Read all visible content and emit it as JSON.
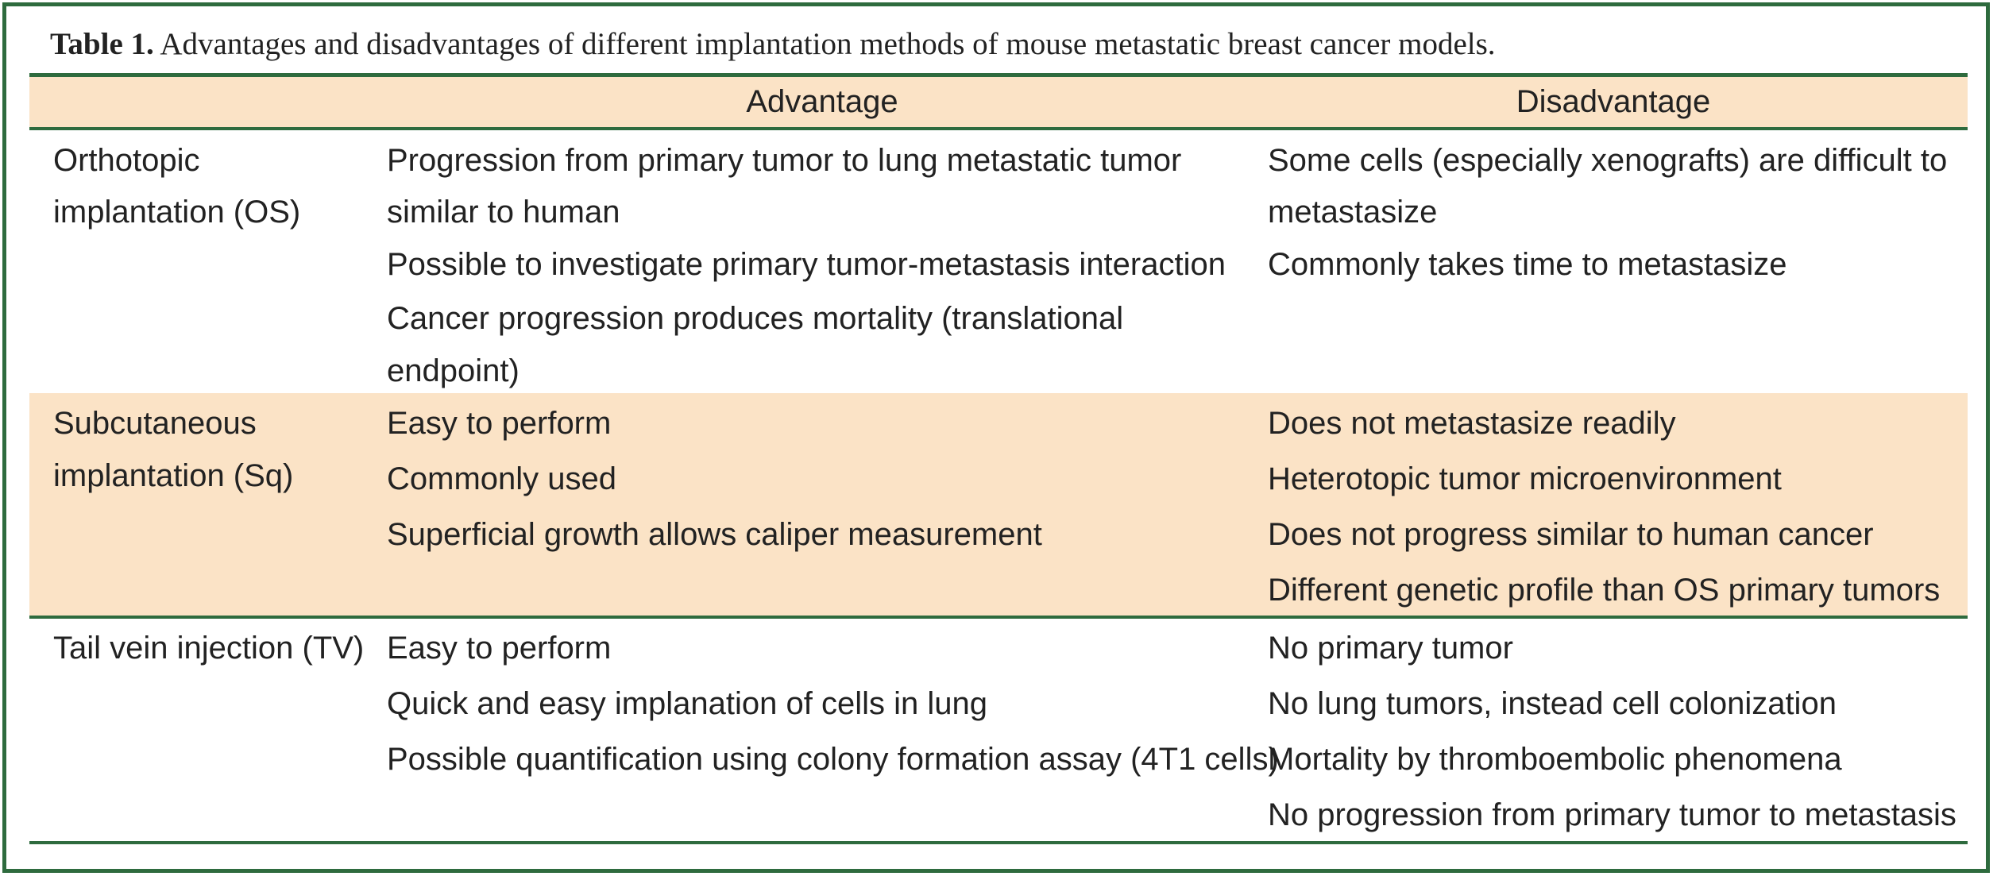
{
  "caption": {
    "label": "Table 1.",
    "text": " Advantages and disadvantages of different implantation methods of mouse metastatic breast cancer models."
  },
  "headers": {
    "method": "",
    "advantage": "Advantage",
    "disadvantage": "Disadvantage"
  },
  "rows": [
    {
      "method": [
        "Orthotopic",
        "implantation (OS)"
      ],
      "advantage": [
        "Progression from primary tumor to lung metastatic tumor",
        "similar to human",
        "Possible to investigate primary tumor-metastasis interaction",
        "Cancer progression produces mortality (translational",
        "endpoint)"
      ],
      "disadvantage": [
        "Some cells (especially xenografts) are difficult to",
        "metastasize",
        "Commonly takes time to metastasize"
      ]
    },
    {
      "method": [
        "Subcutaneous",
        "implantation (Sq)"
      ],
      "advantage": [
        "Easy to perform",
        "Commonly used",
        "Superficial growth allows caliper measurement"
      ],
      "disadvantage": [
        "Does not metastasize readily",
        "Heterotopic tumor microenvironment",
        "Does not progress similar to human cancer",
        "Different genetic profile than OS primary tumors"
      ]
    },
    {
      "method": [
        "Tail vein injection (TV)"
      ],
      "advantage": [
        "Easy to perform",
        "Quick and easy implanation of cells in lung",
        "Possible quantification using colony formation assay (4T1 cells)"
      ],
      "disadvantage": [
        "No primary tumor",
        "No lung tumors, instead cell colonization",
        "Mortality by thromboembolic phenomena",
        "No progression from primary tumor to metastasis"
      ]
    }
  ],
  "colors": {
    "border": "#2e6b3e",
    "band": "#fbe3c6"
  }
}
